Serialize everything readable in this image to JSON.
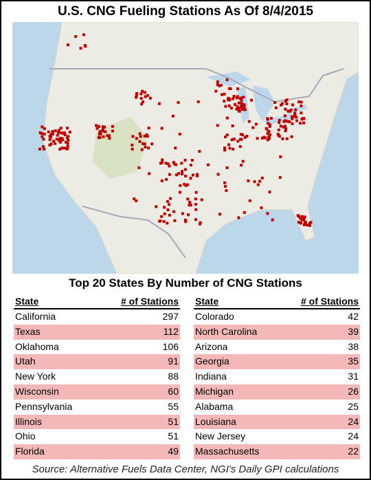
{
  "header": {
    "title": "U.S. CNG Fueling Stations As Of 8/4/2015"
  },
  "table": {
    "title": "Top 20 States By Number of CNG Stations",
    "left": {
      "columns": [
        "State",
        "# of Stations"
      ],
      "rows": [
        [
          "California",
          297
        ],
        [
          "Texas",
          112
        ],
        [
          "Oklahoma",
          106
        ],
        [
          "Utah",
          91
        ],
        [
          "New York",
          88
        ],
        [
          "Wisconsin",
          60
        ],
        [
          "Pennsylvania",
          55
        ],
        [
          "Illinois",
          51
        ],
        [
          "Ohio",
          51
        ],
        [
          "Florida",
          49
        ]
      ]
    },
    "right": {
      "columns": [
        "State",
        "# of Stations"
      ],
      "rows": [
        [
          "Colorado",
          42
        ],
        [
          "North Carolina",
          39
        ],
        [
          "Arizona",
          38
        ],
        [
          "Georgia",
          35
        ],
        [
          "Indiana",
          31
        ],
        [
          "Michigan",
          26
        ],
        [
          "Alabama",
          25
        ],
        [
          "Louisiana",
          24
        ],
        [
          "New Jersey",
          24
        ],
        [
          "Massachusetts",
          22
        ]
      ]
    }
  },
  "footer": {
    "source": "Source: Alternative Fuels Data Center, NGI's Daily GPI calculations"
  }
}
